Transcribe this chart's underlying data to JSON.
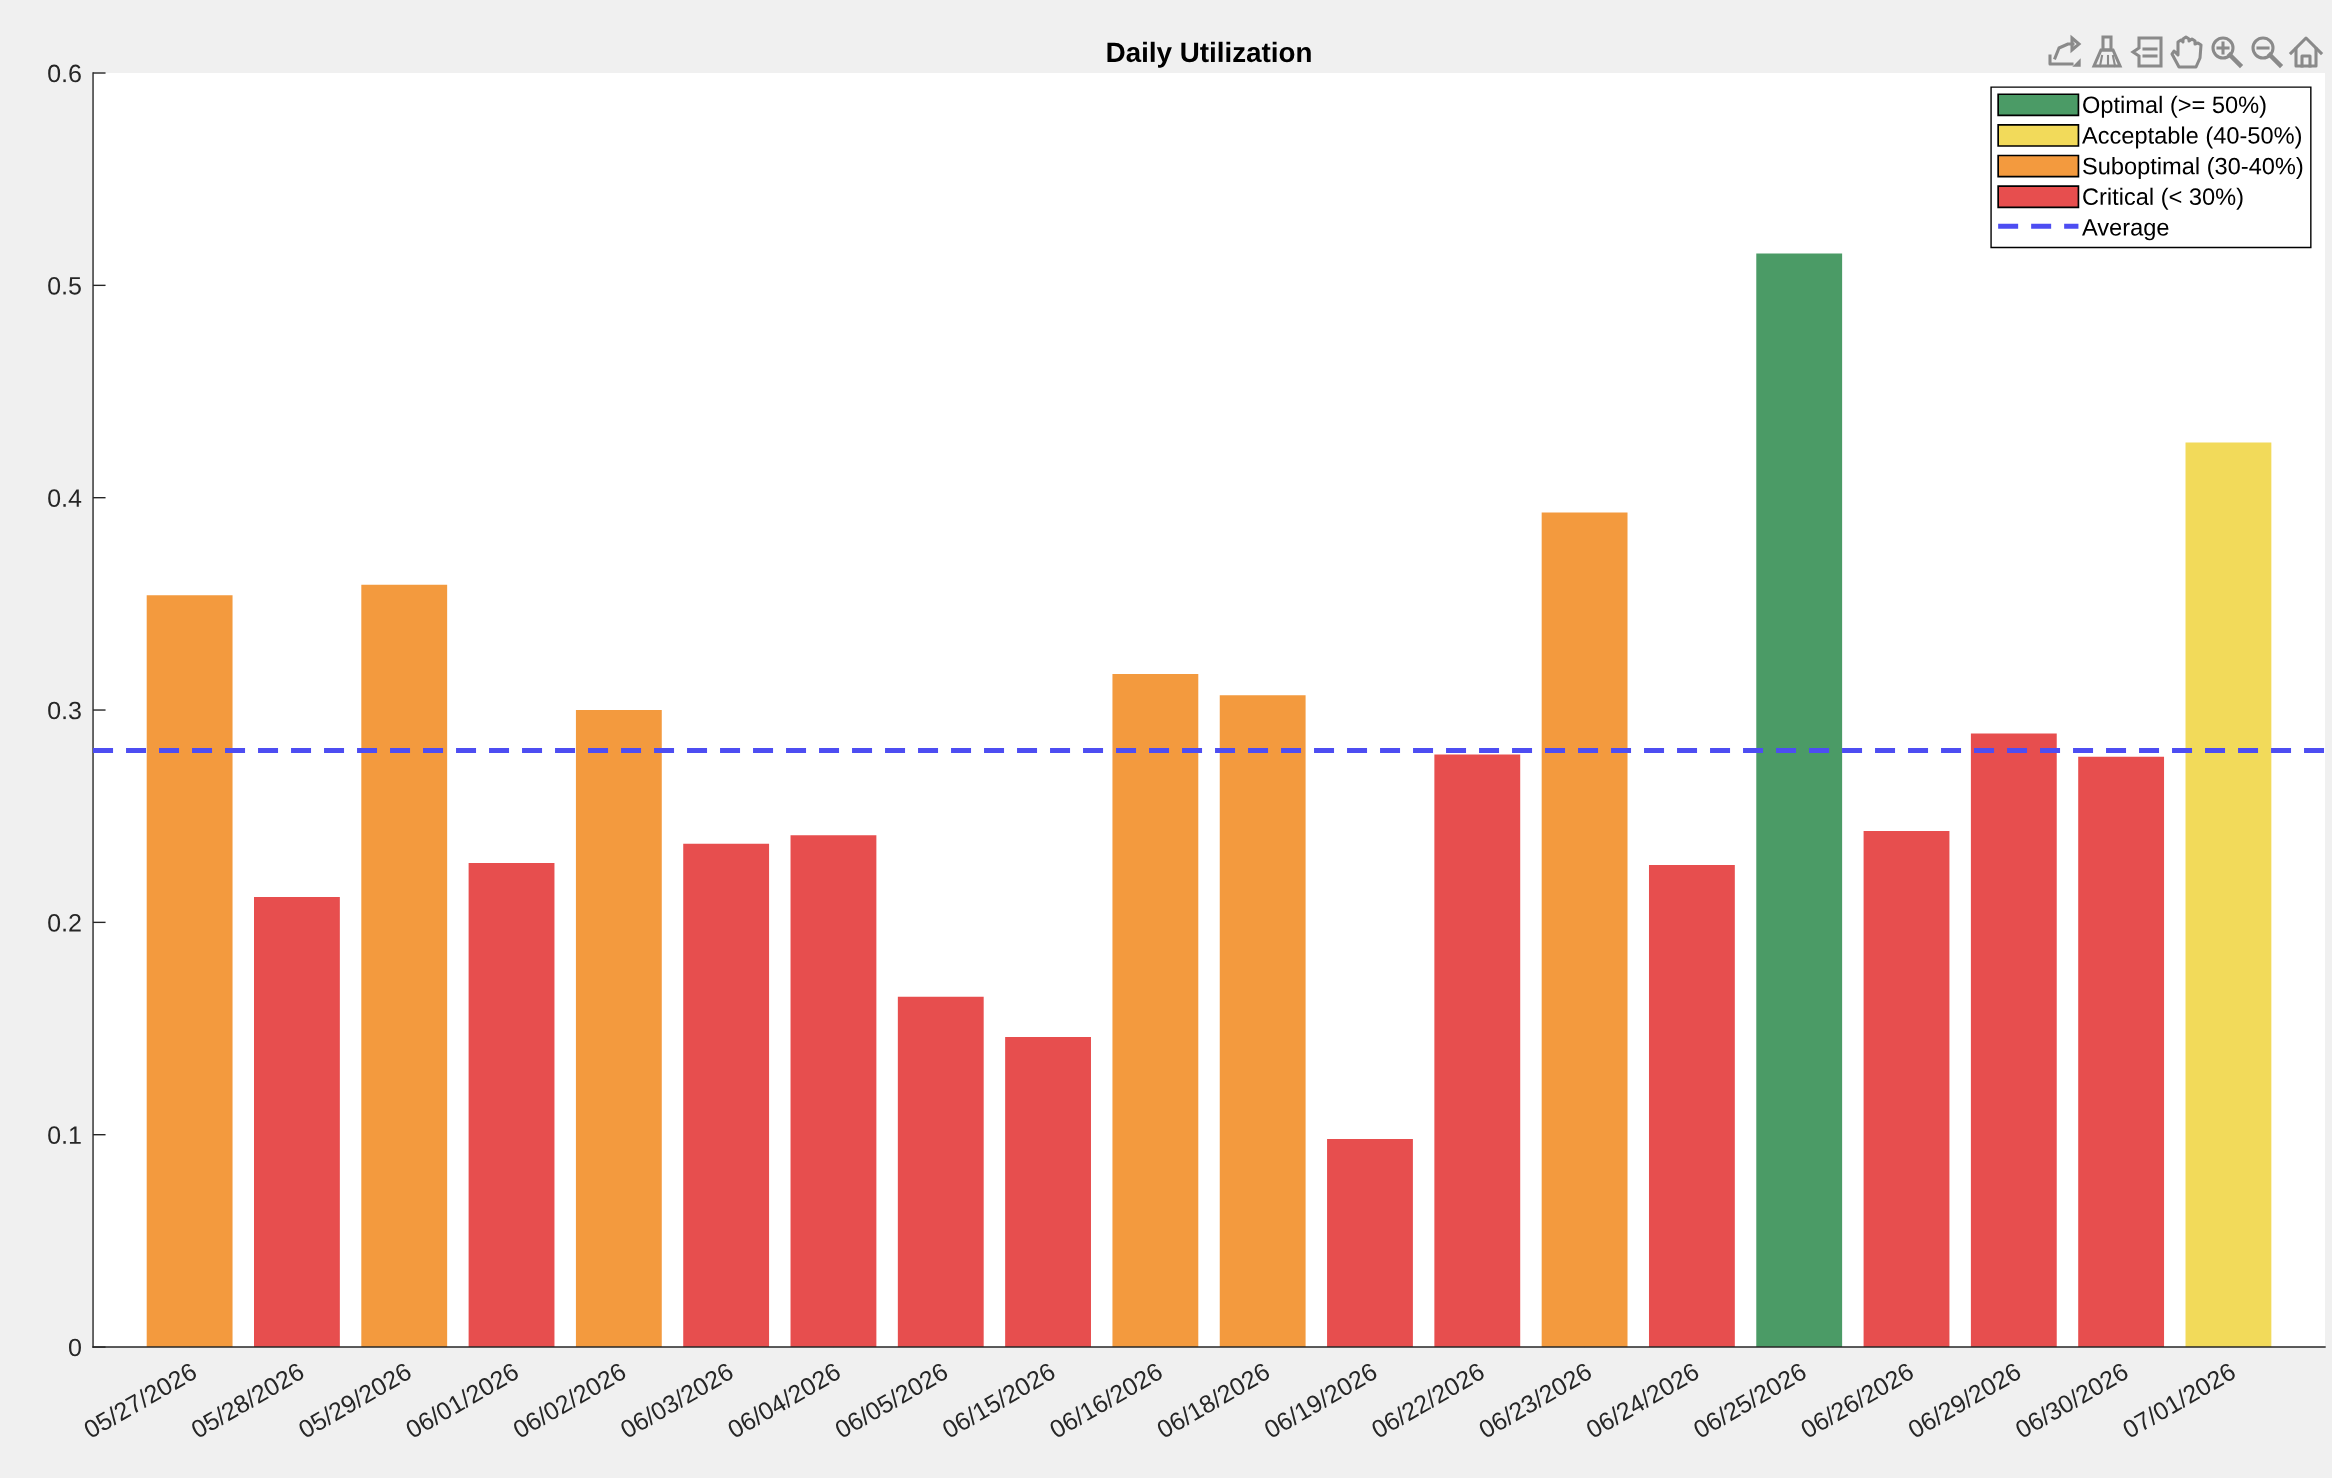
{
  "chart_data": {
    "type": "bar",
    "title": "Daily Utilization",
    "categories": [
      "05/27/2026",
      "05/28/2026",
      "05/29/2026",
      "06/01/2026",
      "06/02/2026",
      "06/03/2026",
      "06/04/2026",
      "06/05/2026",
      "06/15/2026",
      "06/16/2026",
      "06/18/2026",
      "06/19/2026",
      "06/22/2026",
      "06/23/2026",
      "06/24/2026",
      "06/25/2026",
      "06/26/2026",
      "06/29/2026",
      "06/30/2026",
      "07/01/2026"
    ],
    "series": [
      {
        "name": "Optimal (>= 50%)",
        "color": "#4b9b66",
        "values": [
          null,
          null,
          null,
          null,
          null,
          null,
          null,
          null,
          null,
          null,
          null,
          null,
          null,
          null,
          null,
          0.515,
          null,
          null,
          null,
          null
        ]
      },
      {
        "name": "Acceptable (40-50%)",
        "color": "#f2da5a",
        "values": [
          null,
          null,
          null,
          null,
          null,
          null,
          null,
          null,
          null,
          null,
          null,
          null,
          null,
          null,
          null,
          null,
          null,
          null,
          null,
          0.426
        ]
      },
      {
        "name": "Suboptimal (30-40%)",
        "color": "#f39a3e",
        "values": [
          0.354,
          null,
          0.359,
          null,
          0.3,
          null,
          null,
          null,
          null,
          0.317,
          0.307,
          null,
          null,
          0.393,
          null,
          null,
          null,
          null,
          null,
          null
        ]
      },
      {
        "name": "Critical (< 30%)",
        "color": "#e74e4e",
        "values": [
          null,
          0.212,
          null,
          0.228,
          null,
          0.237,
          0.241,
          0.165,
          0.146,
          null,
          null,
          0.098,
          0.279,
          null,
          0.227,
          null,
          0.243,
          0.289,
          0.278,
          null
        ]
      }
    ],
    "ylim": [
      0,
      0.6
    ],
    "yticks": [
      0,
      0.1,
      0.2,
      0.3,
      0.4,
      0.5,
      0.6
    ],
    "ref_lines": [
      {
        "axis": "y",
        "value": 0.281,
        "label": "Average",
        "color": "#4d4df2",
        "line_style": "dashed"
      }
    ],
    "legend": "top right"
  }
}
